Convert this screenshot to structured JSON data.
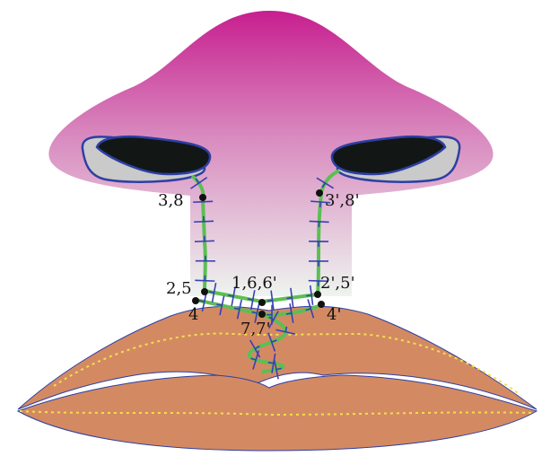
{
  "colors": {
    "nose_top": "#c71f8f",
    "nose_bottom": "#eef4ef",
    "outline": "#2d3fa3",
    "nostril_dark": "#121716",
    "nostril_light": "#c9cac9",
    "lip_fill": "#d38a63",
    "suture_line": "#5bbf53",
    "stitch": "#3a3fb5",
    "dotted_line": "#f2e04a",
    "point": "#111111"
  },
  "labels": {
    "p38": "3,8",
    "p38_prime": "3',8'",
    "p25": "2,5",
    "p166": "1,6,6'",
    "p25_prime": "2',5'",
    "p4": "4",
    "p4_prime": "4'",
    "p77": "7,7'"
  }
}
